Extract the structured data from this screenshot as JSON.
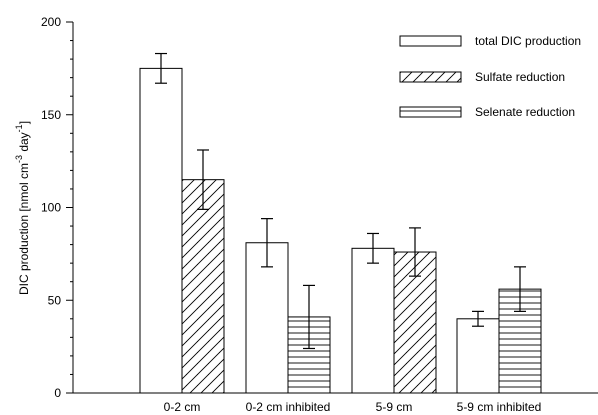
{
  "chart_data": {
    "type": "bar",
    "categories": [
      "0-2 cm",
      "0-2 cm inhibited",
      "5-9 cm",
      "5-9 cm inhibited"
    ],
    "ylabel": "DIC production [nmol cm",
    "ylabel_sup1": "-3",
    "ylabel_mid": " day",
    "ylabel_sup2": "-1",
    "ylabel_end": "]",
    "ylim": [
      0,
      200
    ],
    "yticks": [
      "0",
      "50",
      "100",
      "150",
      "200"
    ],
    "grid": false,
    "legend_position": "top-right",
    "series": [
      {
        "name": "total DIC production",
        "pattern": "empty",
        "values": [
          175,
          81,
          78,
          40
        ],
        "err_low": [
          167,
          68,
          70,
          36
        ],
        "err_high": [
          183,
          94,
          86,
          44
        ]
      },
      {
        "name": "Sulfate reduction",
        "pattern": "diagonal",
        "values": [
          115,
          null,
          76,
          null
        ],
        "err_low": [
          99,
          null,
          63,
          null
        ],
        "err_high": [
          131,
          null,
          89,
          null
        ]
      },
      {
        "name": "Selenate reduction",
        "pattern": "horizontal",
        "values": [
          null,
          41,
          null,
          56
        ],
        "err_low": [
          null,
          24,
          null,
          44
        ],
        "err_high": [
          null,
          58,
          null,
          68
        ]
      }
    ]
  }
}
